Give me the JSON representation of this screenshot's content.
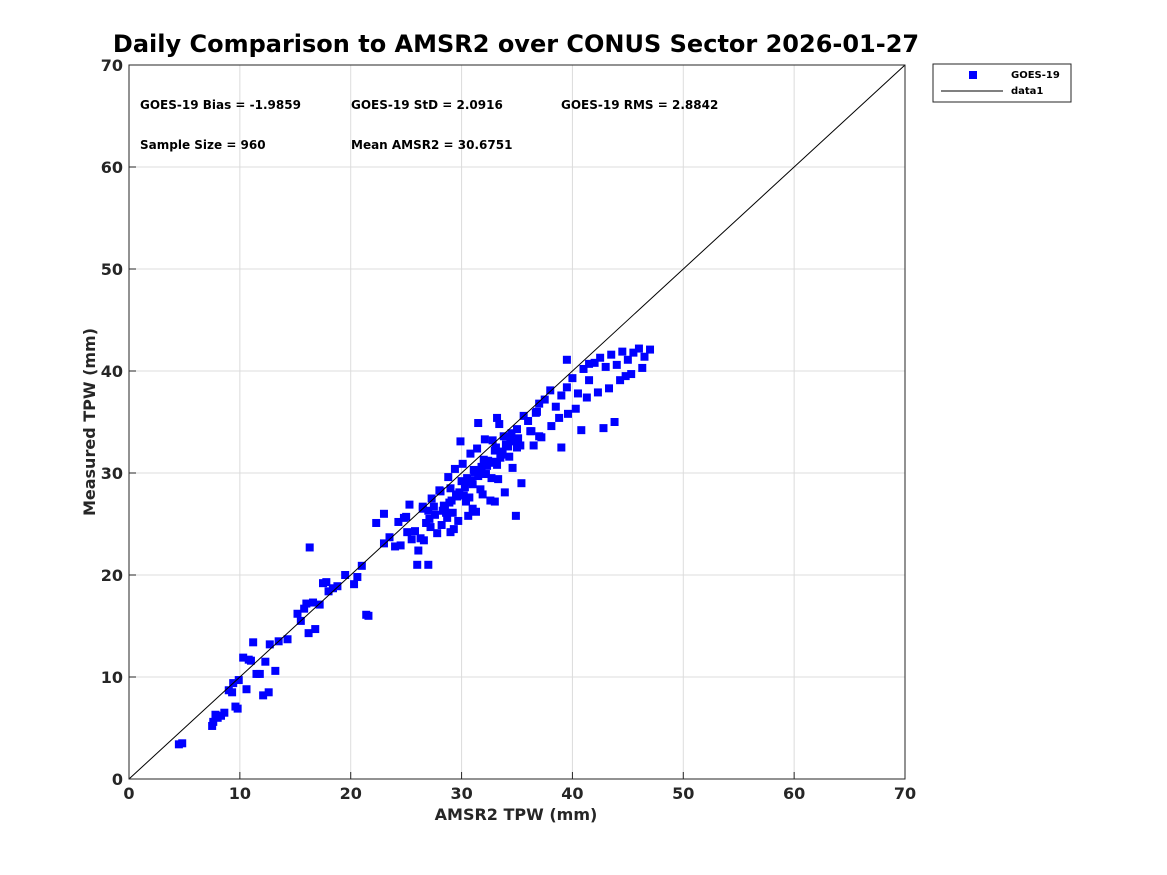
{
  "chart_data": {
    "type": "scatter",
    "title": "Daily Comparison to AMSR2 over CONUS Sector 2026-01-27",
    "xlabel": "AMSR2 TPW (mm)",
    "ylabel": "Measured TPW (mm)",
    "xlim": [
      0,
      70
    ],
    "ylim": [
      0,
      70
    ],
    "xticks": [
      "0",
      "10",
      "20",
      "30",
      "40",
      "50",
      "60",
      "70"
    ],
    "yticks": [
      "0",
      "10",
      "20",
      "30",
      "40",
      "50",
      "60",
      "70"
    ],
    "grid": true,
    "legend": {
      "placement": "outside-top-right",
      "entries": [
        "GOES-19",
        "data1"
      ]
    },
    "annotations": {
      "bias": "GOES-19 Bias = -1.9859",
      "std": "GOES-19 StD = 2.0916",
      "rms": "GOES-19 RMS = 2.8842",
      "sample": "Sample Size = 960",
      "mean": "Mean AMSR2 = 30.6751"
    },
    "colors": {
      "series": "#0000ff",
      "reference": "#000000",
      "grid": "#dcdcdc",
      "axis": "#262626"
    },
    "series": [
      {
        "name": "GOES-19",
        "marker": "square",
        "x": [
          4.5,
          4.8,
          7.5,
          7.6,
          7.8,
          8.0,
          8.3,
          8.6,
          9.0,
          9.3,
          9.4,
          9.6,
          9.8,
          9.9,
          10.3,
          10.6,
          10.8,
          11.0,
          11.2,
          11.5,
          11.8,
          12.1,
          12.3,
          12.6,
          12.7,
          13.2,
          13.5,
          14.3,
          15.2,
          15.5,
          15.8,
          16.0,
          16.2,
          16.3,
          16.6,
          16.8,
          17.2,
          17.5,
          17.8,
          18.0,
          18.4,
          18.8,
          19.5,
          20.3,
          20.6,
          21.0,
          21.4,
          21.6,
          22.3,
          23.0,
          23.5,
          24.0,
          24.3,
          25.0,
          25.3,
          25.5,
          25.8,
          26.0,
          26.3,
          26.5,
          26.8,
          27.0,
          27.2,
          27.5,
          27.8,
          28.0,
          28.2,
          28.5,
          28.7,
          29.0,
          29.2,
          29.5,
          29.7,
          30.0,
          30.2,
          30.5,
          30.7,
          31.0,
          31.2,
          31.5,
          31.7,
          32.0,
          32.2,
          32.5,
          32.7,
          33.0,
          33.2,
          33.5,
          33.8,
          34.0,
          34.3,
          34.5,
          34.8,
          35.0,
          35.3,
          35.6,
          36.0,
          36.3,
          36.7,
          37.0,
          37.5,
          38.0,
          38.5,
          39.0,
          39.5,
          40.0,
          40.5,
          41.0,
          41.5,
          42.0,
          42.5,
          43.0,
          43.5,
          44.0,
          44.5,
          45.0,
          45.5,
          46.0,
          46.5,
          47.0,
          26.5,
          27.3,
          28.1,
          28.8,
          29.4,
          30.1,
          30.8,
          31.4,
          32.1,
          32.8,
          33.4,
          27.6,
          28.4,
          29.1,
          29.8,
          30.5,
          31.1,
          31.8,
          32.4,
          33.1,
          33.7,
          34.4,
          28.9,
          29.6,
          30.3,
          30.9,
          31.6,
          32.3,
          32.9,
          33.6,
          34.2,
          35.1,
          36.2,
          27.1,
          28.6,
          30.4,
          31.9,
          33.3,
          34.6,
          29.3,
          30.6,
          31.3,
          32.6,
          33.9,
          35.4,
          36.5,
          37.2,
          38.1,
          38.8,
          39.6,
          40.3,
          41.3,
          42.3,
          43.3,
          44.3,
          45.3,
          46.3,
          39.0,
          40.8,
          42.8,
          44.8,
          23.0,
          24.5,
          25.1,
          26.1,
          27.0,
          29.0,
          31.0,
          33.0,
          35.0,
          37.0,
          39.5,
          41.5,
          43.8,
          24.8,
          26.6,
          28.3,
          29.9,
          31.5,
          33.2,
          34.9,
          36.8
        ],
        "y": [
          3.4,
          3.5,
          5.2,
          5.6,
          6.3,
          6.0,
          6.2,
          6.5,
          8.7,
          8.5,
          9.4,
          7.1,
          6.9,
          9.7,
          11.9,
          8.8,
          11.7,
          11.6,
          13.4,
          10.3,
          10.3,
          8.2,
          11.5,
          8.5,
          13.2,
          10.6,
          13.5,
          13.7,
          16.2,
          15.5,
          16.7,
          17.2,
          14.3,
          22.7,
          17.3,
          14.7,
          17.1,
          19.2,
          19.3,
          18.4,
          18.7,
          18.9,
          20.0,
          19.1,
          19.8,
          20.9,
          16.1,
          16.0,
          25.1,
          23.1,
          23.7,
          22.8,
          25.2,
          25.7,
          26.9,
          23.5,
          24.3,
          21.0,
          23.6,
          26.5,
          25.1,
          26.3,
          24.7,
          26.7,
          24.1,
          28.3,
          24.9,
          26.4,
          25.6,
          28.5,
          26.1,
          27.9,
          25.3,
          29.2,
          27.8,
          29.1,
          27.6,
          28.9,
          30.1,
          29.7,
          28.4,
          31.3,
          29.9,
          31.0,
          29.5,
          32.2,
          30.8,
          31.5,
          33.6,
          32.8,
          31.6,
          33.9,
          33.1,
          34.3,
          32.7,
          35.6,
          35.1,
          34.1,
          35.9,
          36.8,
          37.2,
          38.1,
          36.5,
          37.6,
          38.4,
          39.3,
          37.8,
          40.2,
          39.1,
          40.8,
          41.3,
          40.4,
          41.6,
          40.6,
          41.9,
          41.1,
          41.8,
          42.2,
          41.4,
          42.1,
          26.7,
          27.5,
          28.2,
          29.6,
          30.4,
          30.9,
          31.9,
          32.4,
          33.3,
          33.2,
          34.8,
          25.9,
          26.8,
          27.3,
          28.1,
          29.5,
          30.3,
          30.6,
          31.2,
          32.5,
          32.1,
          33.3,
          27.1,
          27.7,
          28.6,
          29.3,
          29.9,
          30.7,
          31.1,
          31.8,
          32.6,
          33.4,
          34.1,
          25.5,
          26.1,
          27.2,
          27.9,
          29.4,
          30.5,
          24.5,
          25.8,
          26.2,
          27.3,
          28.1,
          29.0,
          32.7,
          33.5,
          34.6,
          35.4,
          35.8,
          36.3,
          37.4,
          37.9,
          38.3,
          39.1,
          39.7,
          40.3,
          32.5,
          34.2,
          34.4,
          39.5,
          26.0,
          22.9,
          24.2,
          22.4,
          21.0,
          24.2,
          26.5,
          27.2,
          32.5,
          33.6,
          41.1,
          40.7,
          35.0,
          25.6,
          23.4,
          26.3,
          33.1,
          34.9,
          35.4,
          25.8,
          36.0
        ]
      },
      {
        "name": "data1",
        "type": "line",
        "x": [
          0,
          70
        ],
        "y": [
          0,
          70
        ]
      }
    ]
  }
}
